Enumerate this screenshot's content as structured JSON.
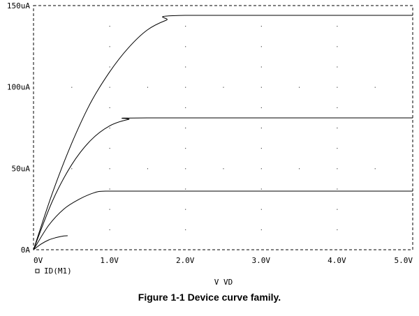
{
  "caption": "Figure 1-1  Device curve family.",
  "chart_data": {
    "type": "line",
    "xlabel": "V_VD",
    "ylabel": "",
    "xlim": [
      0,
      5
    ],
    "ylim": [
      0,
      150
    ],
    "xticks": [
      {
        "value": 0,
        "label": "0V"
      },
      {
        "value": 1,
        "label": "1.0V"
      },
      {
        "value": 2,
        "label": "2.0V"
      },
      {
        "value": 3,
        "label": "3.0V"
      },
      {
        "value": 4,
        "label": "4.0V"
      },
      {
        "value": 5,
        "label": "5.0V"
      }
    ],
    "yticks": [
      {
        "value": 0,
        "label": "0A"
      },
      {
        "value": 50,
        "label": "50uA"
      },
      {
        "value": 100,
        "label": "100uA"
      },
      {
        "value": 150,
        "label": "150uA"
      }
    ],
    "grid": "dotted",
    "legend": {
      "marker": "square",
      "label": "ID(M1)",
      "position": "bottom-left"
    },
    "line_color": "#000000",
    "series": [
      {
        "x": [
          0,
          0.1,
          0.2,
          0.3,
          0.4,
          0.45
        ],
        "y": [
          0,
          3.5,
          6.0,
          7.5,
          8.5,
          8.6
        ]
      },
      {
        "x": [
          0,
          0.2,
          0.4,
          0.6,
          0.8,
          0.95,
          1.5,
          5.0
        ],
        "y": [
          0,
          15,
          25,
          31,
          35,
          36,
          36,
          36
        ]
      },
      {
        "x": [
          0,
          0.25,
          0.5,
          0.75,
          1.0,
          1.25,
          1.5,
          5.0
        ],
        "y": [
          0,
          30,
          52,
          67,
          76,
          80,
          81,
          81
        ]
      },
      {
        "x": [
          0,
          0.25,
          0.5,
          0.75,
          1.0,
          1.25,
          1.5,
          1.75,
          2.0,
          5.0
        ],
        "y": [
          0,
          35,
          65,
          90,
          109,
          124,
          135,
          141,
          144,
          144
        ]
      }
    ]
  }
}
